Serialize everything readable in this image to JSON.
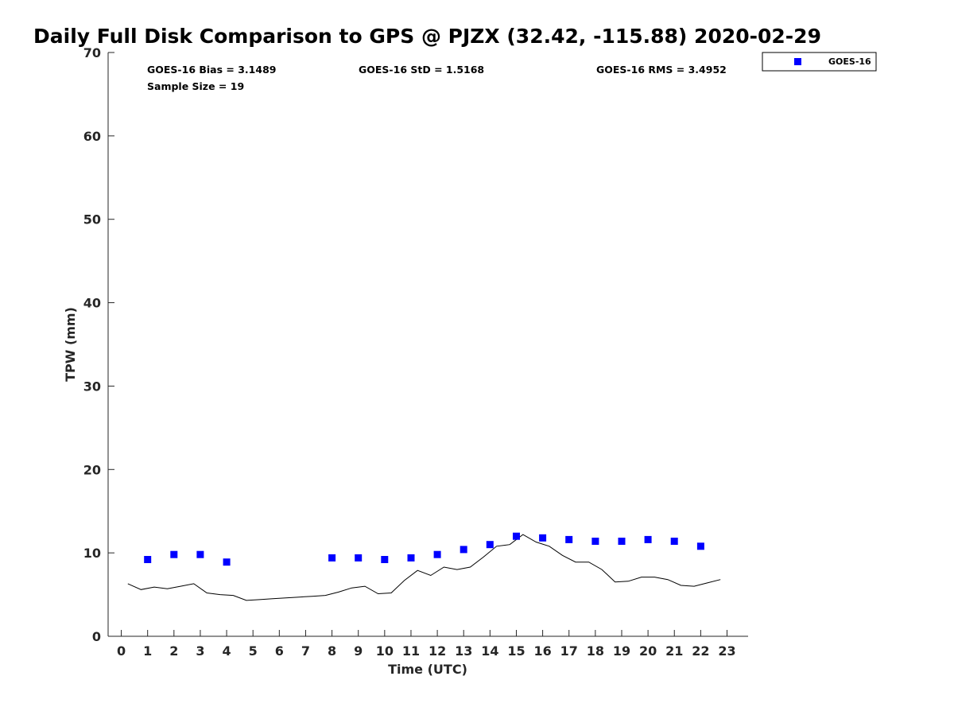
{
  "chart_data": {
    "type": "scatter",
    "title": "Daily Full Disk Comparison to GPS @ PJZX (32.42, -115.88) 2020-02-29",
    "xlabel": "Time (UTC)",
    "ylabel": "TPW (mm)",
    "xlim": [
      -0.5,
      23.8
    ],
    "ylim": [
      0,
      70
    ],
    "x_ticks": [
      0,
      1,
      2,
      3,
      4,
      5,
      6,
      7,
      8,
      9,
      10,
      11,
      12,
      13,
      14,
      15,
      16,
      17,
      18,
      19,
      20,
      21,
      22,
      23
    ],
    "y_ticks": [
      0,
      10,
      20,
      30,
      40,
      50,
      60,
      70
    ],
    "grid": false,
    "legend": {
      "position": "top-right",
      "entries": [
        "GOES-16"
      ]
    },
    "stats": {
      "bias": "GOES-16 Bias = 3.1489",
      "std": "GOES-16 StD = 1.5168",
      "rms": "GOES-16 RMS = 3.4952",
      "sample": "Sample Size = 19"
    },
    "series": [
      {
        "name": "GOES-16",
        "kind": "scatter",
        "color": "#0000ff",
        "marker": "square",
        "x": [
          1,
          2,
          3,
          4,
          8,
          9,
          10,
          11,
          12,
          13,
          14,
          15,
          16,
          17,
          18,
          19,
          20,
          21,
          22
        ],
        "y": [
          9.2,
          9.8,
          9.8,
          8.9,
          9.4,
          9.4,
          9.2,
          9.4,
          9.8,
          10.4,
          11.0,
          12.0,
          11.8,
          11.6,
          11.4,
          11.4,
          11.6,
          11.4,
          10.8
        ]
      },
      {
        "kind": "line",
        "color": "#000000",
        "x": [
          0.25,
          0.75,
          1.25,
          1.75,
          2.25,
          2.75,
          3.25,
          3.75,
          4.25,
          4.75,
          5.25,
          5.75,
          6.25,
          6.75,
          7.25,
          7.75,
          8.25,
          8.75,
          9.25,
          9.75,
          10.25,
          10.75,
          11.25,
          11.75,
          12.25,
          12.75,
          13.25,
          13.75,
          14.25,
          14.75,
          15.25,
          15.75,
          16.25,
          16.75,
          17.25,
          17.75,
          18.25,
          18.75,
          19.25,
          19.75,
          20.25,
          20.75,
          21.25,
          21.75,
          22.25,
          22.75
        ],
        "y": [
          6.3,
          5.6,
          5.9,
          5.7,
          6.0,
          6.3,
          5.2,
          5.0,
          4.9,
          4.3,
          4.4,
          4.5,
          4.6,
          4.7,
          4.8,
          4.9,
          5.3,
          5.8,
          6.0,
          5.1,
          5.2,
          6.7,
          7.9,
          7.3,
          8.3,
          8.0,
          8.3,
          9.5,
          10.8,
          11.0,
          12.2,
          11.3,
          10.8,
          9.7,
          8.9,
          8.9,
          8.0,
          6.5,
          6.6,
          7.1,
          7.1,
          6.8,
          6.1,
          6.0,
          6.4,
          6.8
        ]
      }
    ]
  }
}
